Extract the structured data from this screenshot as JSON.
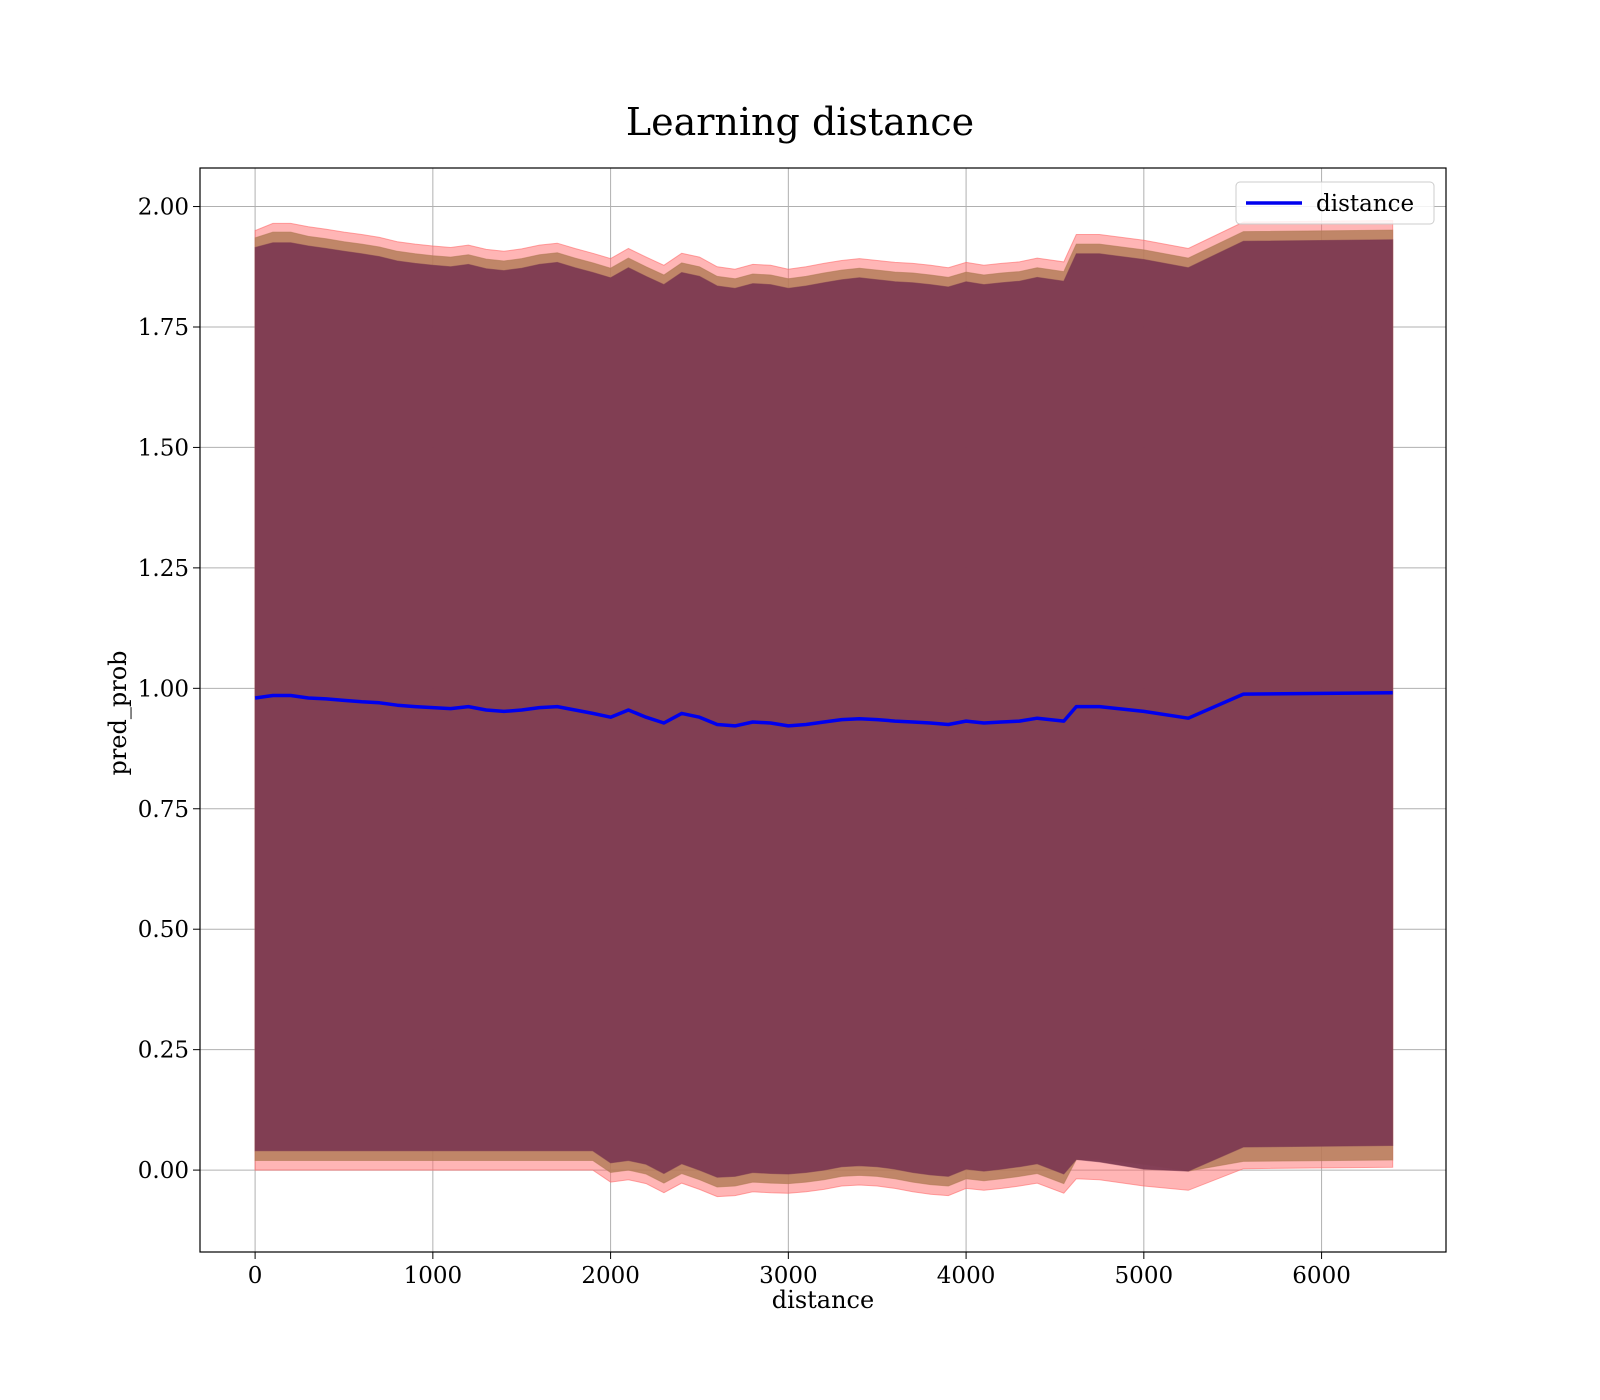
{
  "chart_data": {
    "type": "line",
    "title": "Learning distance",
    "xlabel": "distance",
    "ylabel": "pred_prob",
    "xlim": [
      -310,
      6700
    ],
    "ylim": [
      -0.17,
      2.08
    ],
    "xticks": [
      0,
      1000,
      2000,
      3000,
      4000,
      5000,
      6000
    ],
    "yticks": [
      0.0,
      0.25,
      0.5,
      0.75,
      1.0,
      1.25,
      1.5,
      1.75,
      2.0
    ],
    "ytick_labels": [
      "0.00",
      "0.25",
      "0.50",
      "0.75",
      "1.00",
      "1.25",
      "1.50",
      "1.75",
      "2.00"
    ],
    "grid": true,
    "legend": {
      "position": "top-right",
      "entries": [
        "distance"
      ]
    },
    "colors": {
      "line": "#0000ee",
      "band_outer": "#ff6b6b",
      "band_mid": "#b07a55",
      "band_inner": "#7d3a52"
    },
    "series": [
      {
        "name": "distance",
        "x": [
          0,
          100,
          200,
          300,
          400,
          500,
          600,
          700,
          800,
          900,
          1000,
          1100,
          1200,
          1300,
          1400,
          1500,
          1600,
          1700,
          1800,
          1900,
          2000,
          2100,
          2200,
          2300,
          2400,
          2500,
          2600,
          2700,
          2800,
          2900,
          3000,
          3100,
          3200,
          3300,
          3400,
          3500,
          3600,
          3700,
          3800,
          3900,
          4000,
          4100,
          4200,
          4300,
          4400,
          4550,
          4620,
          4750,
          5000,
          5250,
          5560,
          6400
        ],
        "values": [
          0.98,
          0.985,
          0.985,
          0.98,
          0.978,
          0.975,
          0.972,
          0.97,
          0.965,
          0.962,
          0.96,
          0.958,
          0.962,
          0.955,
          0.952,
          0.955,
          0.96,
          0.962,
          0.955,
          0.948,
          0.94,
          0.955,
          0.94,
          0.928,
          0.948,
          0.94,
          0.925,
          0.922,
          0.93,
          0.928,
          0.922,
          0.925,
          0.93,
          0.935,
          0.937,
          0.935,
          0.932,
          0.93,
          0.928,
          0.925,
          0.932,
          0.928,
          0.93,
          0.932,
          0.938,
          0.932,
          0.962,
          0.962,
          0.952,
          0.938,
          0.988,
          0.991
        ]
      }
    ],
    "bands": [
      {
        "role": "outer",
        "upper_offset": [
          0.97,
          0.98,
          0.98,
          0.978,
          0.975,
          0.972,
          0.97,
          0.966,
          0.962,
          0.96,
          0.958,
          0.957,
          0.958,
          0.956,
          0.955,
          0.957,
          0.96,
          0.962,
          0.958,
          0.955,
          0.952,
          0.958,
          0.955,
          0.95,
          0.955,
          0.955,
          0.95,
          0.948,
          0.95,
          0.95,
          0.948,
          0.95,
          0.952,
          0.953,
          0.955,
          0.953,
          0.952,
          0.952,
          0.95,
          0.948,
          0.952,
          0.95,
          0.952,
          0.953,
          0.955,
          0.953,
          0.98,
          0.98,
          0.978,
          0.975,
          0.98,
          0.98
        ],
        "lower_offset": [
          0.98,
          0.985,
          0.985,
          0.98,
          0.978,
          0.975,
          0.972,
          0.97,
          0.965,
          0.962,
          0.96,
          0.958,
          0.962,
          0.955,
          0.952,
          0.955,
          0.96,
          0.962,
          0.955,
          0.948,
          0.965,
          0.975,
          0.968,
          0.975,
          0.975,
          0.98,
          0.98,
          0.975,
          0.975,
          0.975,
          0.97,
          0.97,
          0.97,
          0.968,
          0.968,
          0.968,
          0.97,
          0.975,
          0.978,
          0.978,
          0.97,
          0.97,
          0.968,
          0.965,
          0.965,
          0.98,
          0.98,
          0.982,
          0.985,
          0.98,
          0.985,
          0.985
        ]
      },
      {
        "role": "middle",
        "upper_offset": [
          0.955,
          0.962,
          0.962,
          0.958,
          0.955,
          0.952,
          0.95,
          0.946,
          0.942,
          0.94,
          0.938,
          0.937,
          0.938,
          0.936,
          0.935,
          0.937,
          0.94,
          0.942,
          0.938,
          0.935,
          0.932,
          0.938,
          0.935,
          0.93,
          0.935,
          0.935,
          0.93,
          0.928,
          0.93,
          0.93,
          0.928,
          0.93,
          0.932,
          0.933,
          0.935,
          0.933,
          0.932,
          0.932,
          0.93,
          0.928,
          0.932,
          0.93,
          0.932,
          0.933,
          0.935,
          0.933,
          0.96,
          0.96,
          0.958,
          0.955,
          0.96,
          0.96
        ],
        "lower_offset": [
          0.96,
          0.965,
          0.965,
          0.96,
          0.958,
          0.955,
          0.952,
          0.95,
          0.945,
          0.942,
          0.94,
          0.938,
          0.942,
          0.935,
          0.932,
          0.935,
          0.94,
          0.942,
          0.935,
          0.928,
          0.945,
          0.955,
          0.948,
          0.955,
          0.955,
          0.96,
          0.96,
          0.955,
          0.955,
          0.955,
          0.95,
          0.95,
          0.95,
          0.948,
          0.948,
          0.948,
          0.95,
          0.955,
          0.958,
          0.958,
          0.95,
          0.95,
          0.948,
          0.945,
          0.945,
          0.96,
          0.94,
          0.94,
          0.94,
          0.94,
          0.97,
          0.97
        ]
      },
      {
        "role": "inner",
        "upper_offset": [
          0.935,
          0.94,
          0.94,
          0.938,
          0.935,
          0.932,
          0.93,
          0.926,
          0.922,
          0.92,
          0.918,
          0.917,
          0.918,
          0.916,
          0.915,
          0.917,
          0.92,
          0.922,
          0.918,
          0.915,
          0.912,
          0.918,
          0.915,
          0.91,
          0.915,
          0.915,
          0.91,
          0.908,
          0.91,
          0.91,
          0.908,
          0.91,
          0.912,
          0.913,
          0.915,
          0.913,
          0.912,
          0.912,
          0.91,
          0.908,
          0.912,
          0.91,
          0.912,
          0.913,
          0.915,
          0.913,
          0.94,
          0.94,
          0.938,
          0.935,
          0.94,
          0.94
        ],
        "lower_offset": [
          0.94,
          0.945,
          0.945,
          0.94,
          0.938,
          0.935,
          0.932,
          0.93,
          0.925,
          0.922,
          0.92,
          0.918,
          0.922,
          0.915,
          0.912,
          0.915,
          0.92,
          0.922,
          0.915,
          0.908,
          0.925,
          0.935,
          0.928,
          0.935,
          0.935,
          0.94,
          0.94,
          0.935,
          0.935,
          0.935,
          0.93,
          0.93,
          0.93,
          0.928,
          0.928,
          0.928,
          0.93,
          0.935,
          0.938,
          0.938,
          0.93,
          0.93,
          0.928,
          0.925,
          0.925,
          0.94,
          0.94,
          0.945,
          0.95,
          0.94,
          0.94,
          0.94
        ]
      }
    ]
  }
}
